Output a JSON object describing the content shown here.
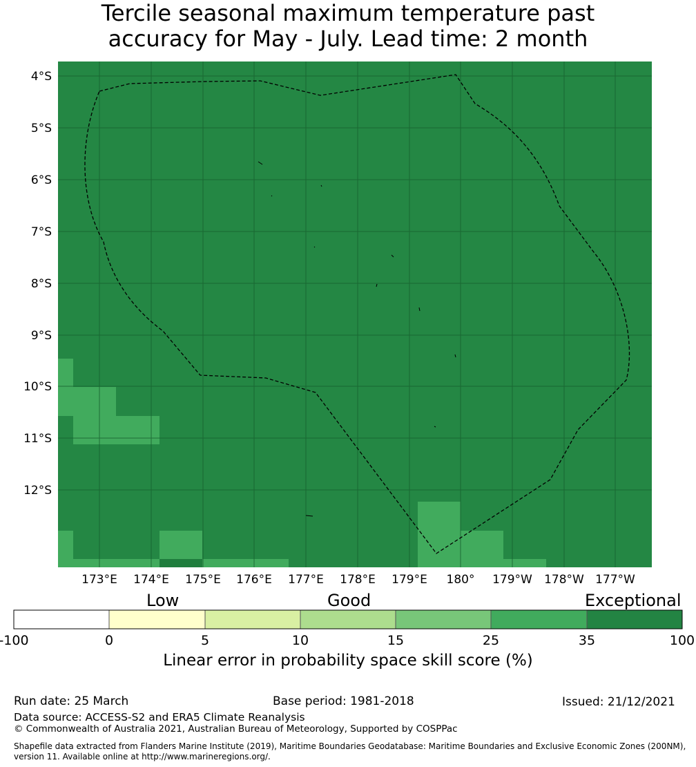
{
  "title": {
    "line1": "Tercile seasonal maximum temperature past",
    "line2": "accuracy for May - July. Lead time: 2 month"
  },
  "map": {
    "lat_labels": [
      "4°S",
      "5°S",
      "6°S",
      "7°S",
      "8°S",
      "9°S",
      "10°S",
      "11°S",
      "12°S"
    ],
    "lon_labels": [
      "173°E",
      "174°E",
      "175°E",
      "176°E",
      "177°E",
      "178°E",
      "179°E",
      "180°",
      "179°W",
      "178°W",
      "177°W"
    ],
    "background_color": "#248744",
    "patch_color": "#41ab5d",
    "darker_patch_color": "#1f7d3d",
    "grid_color": "#17602e",
    "boundary_style": "dashed black line (EEZ)"
  },
  "colorbar": {
    "category_words": [
      "Low",
      "Good",
      "Exceptional"
    ],
    "ticks": [
      "-100",
      "0",
      "5",
      "10",
      "15",
      "25",
      "35",
      "100"
    ],
    "colors": [
      "#ffffff",
      "#ffffcc",
      "#d9f0a3",
      "#addd8e",
      "#78c679",
      "#41ab5d",
      "#238443"
    ],
    "label": "Linear error in probability space skill score (%)"
  },
  "footer": {
    "run_date": "Run date: 25 March",
    "base_period": "Base period: 1981-2018",
    "issued": "Issued: 21/12/2021",
    "data_source": "Data source: ACCESS-S2 and ERA5 Climate Reanalysis",
    "copyright": "© Commonwealth of Australia 2021, Australian Bureau of Meteorology, Supported by COSPPac",
    "shapefile": "Shapefile data extracted from Flanders Marine Institute (2019), Maritime Boundaries Geodatabase: Maritime Boundaries and Exclusive Economic Zones (200NM), version 11. Available online at http://www.marineregions.org/."
  }
}
